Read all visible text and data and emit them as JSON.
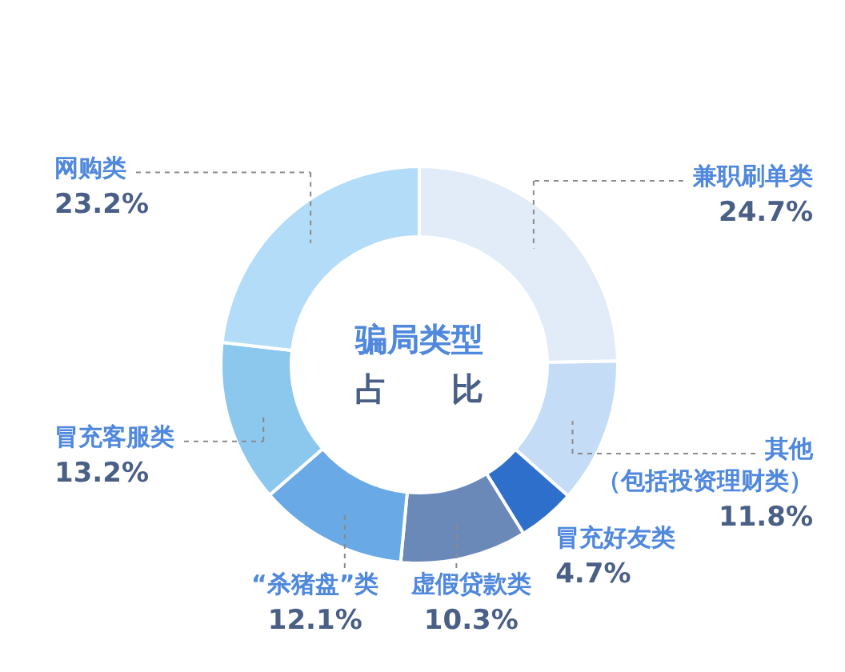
{
  "chart_data": {
    "type": "donut",
    "title": "骗局类型",
    "subtitle": "占　　比",
    "categories": [
      "兼职刷单类",
      "其他（包括投资理财类）",
      "冒充好友类",
      "虚假贷款类",
      "“杀猪盘”类",
      "冒充客服类",
      "网购类"
    ],
    "values": [
      24.7,
      11.8,
      4.7,
      10.3,
      12.1,
      13.2,
      23.2
    ],
    "value_labels": [
      "24.7%",
      "11.8%",
      "4.7%",
      "10.3%",
      "12.1%",
      "13.2%",
      "23.2%"
    ],
    "colors": [
      "#e1ecf8",
      "#c4dcf5",
      "#2f6fcc",
      "#6a89b8",
      "#68a9e6",
      "#8cc7ee",
      "#b2dcf8"
    ]
  }
}
